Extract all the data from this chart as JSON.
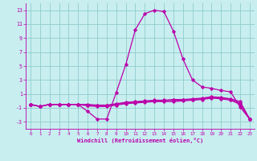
{
  "title": "",
  "xlabel": "Windchill (Refroidissement éolien,°C)",
  "ylabel": "",
  "background_color": "#c8eef0",
  "grid_color": "#90cccc",
  "line_color": "#bb00aa",
  "marker": "D",
  "markersize": 1.8,
  "linewidth": 0.9,
  "xlim": [
    -0.5,
    23.5
  ],
  "ylim": [
    -4,
    14
  ],
  "xticks": [
    0,
    1,
    2,
    3,
    4,
    5,
    6,
    7,
    8,
    9,
    10,
    11,
    12,
    13,
    14,
    15,
    16,
    17,
    18,
    19,
    20,
    21,
    22,
    23
  ],
  "yticks": [
    -3,
    -1,
    1,
    3,
    5,
    7,
    9,
    11,
    13
  ],
  "series": [
    [
      -0.5,
      -0.8,
      -0.5,
      -0.5,
      -0.5,
      -0.5,
      -1.5,
      -2.6,
      -2.6,
      1.2,
      5.2,
      10.2,
      12.5,
      13.0,
      12.8,
      10.0,
      6.0,
      3.0,
      2.0,
      1.8,
      1.5,
      1.3,
      -0.9,
      -2.6
    ],
    [
      -0.5,
      -0.8,
      -0.5,
      -0.5,
      -0.5,
      -0.5,
      -0.7,
      -0.8,
      -0.8,
      -0.6,
      -0.4,
      -0.3,
      -0.2,
      -0.1,
      -0.1,
      -0.1,
      0.0,
      0.1,
      0.2,
      0.4,
      0.3,
      0.1,
      -0.5,
      -2.6
    ],
    [
      -0.5,
      -0.8,
      -0.5,
      -0.5,
      -0.5,
      -0.5,
      -0.6,
      -0.7,
      -0.7,
      -0.5,
      -0.3,
      -0.2,
      -0.1,
      0.0,
      0.0,
      0.1,
      0.1,
      0.2,
      0.3,
      0.5,
      0.4,
      0.2,
      -0.3,
      -2.6
    ],
    [
      -0.5,
      -0.8,
      -0.5,
      -0.5,
      -0.5,
      -0.5,
      -0.5,
      -0.6,
      -0.6,
      -0.4,
      -0.2,
      -0.1,
      0.0,
      0.1,
      0.1,
      0.2,
      0.2,
      0.3,
      0.4,
      0.6,
      0.5,
      0.3,
      -0.1,
      -2.6
    ]
  ]
}
